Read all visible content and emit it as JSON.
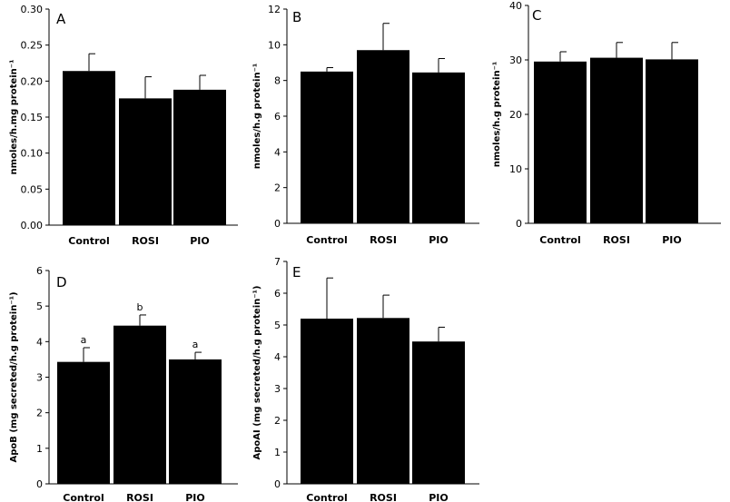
{
  "chart_data": [
    {
      "panel": "A",
      "type": "bar",
      "categories": [
        "Control",
        "ROSI",
        "PIO"
      ],
      "values": [
        0.214,
        0.176,
        0.188
      ],
      "errors": [
        0.024,
        0.03,
        0.02
      ],
      "ylabel": "nmoles/h.mg protein⁻¹",
      "ylim": [
        0,
        0.3
      ],
      "yticks": [
        "0.00",
        "0.05",
        "0.10",
        "0.15",
        "0.20",
        "0.25",
        "0.30"
      ],
      "bar_color": "#000000"
    },
    {
      "panel": "B",
      "type": "bar",
      "categories": [
        "Control",
        "ROSI",
        "PIO"
      ],
      "values": [
        8.5,
        9.7,
        8.45
      ],
      "errors": [
        0.22,
        1.5,
        0.78
      ],
      "ylabel": "nmoles/h.g protein⁻¹",
      "ylim": [
        0,
        12
      ],
      "yticks": [
        "0",
        "2",
        "4",
        "6",
        "8",
        "10",
        "12"
      ],
      "bar_color": "#000000"
    },
    {
      "panel": "C",
      "type": "bar",
      "categories": [
        "Control",
        "ROSI",
        "PIO"
      ],
      "values": [
        29.7,
        30.4,
        30.1
      ],
      "errors": [
        1.8,
        2.8,
        3.1
      ],
      "ylabel": "nmoles/h.g protein⁻¹",
      "ylim": [
        0,
        40
      ],
      "yticks": [
        "0",
        "10",
        "20",
        "30",
        "40"
      ],
      "bar_color": "#000000"
    },
    {
      "panel": "D",
      "type": "bar",
      "categories": [
        "Control",
        "ROSI",
        "PIO"
      ],
      "values": [
        3.43,
        4.45,
        3.5
      ],
      "errors": [
        0.4,
        0.3,
        0.2
      ],
      "significance": [
        "a",
        "b",
        "a"
      ],
      "ylabel": "ApoB (mg secreted/h.g protein⁻¹)",
      "ylim": [
        0,
        6
      ],
      "yticks": [
        "0",
        "1",
        "2",
        "3",
        "4",
        "5",
        "6"
      ],
      "bar_color": "#000000"
    },
    {
      "panel": "E",
      "type": "bar",
      "categories": [
        "Control",
        "ROSI",
        "PIO"
      ],
      "values": [
        5.2,
        5.22,
        4.48
      ],
      "errors": [
        1.28,
        0.72,
        0.45
      ],
      "ylabel": "ApoAI (mg secreted/h.g protein⁻¹)",
      "ylim": [
        0,
        7
      ],
      "yticks": [
        "0",
        "1",
        "2",
        "3",
        "4",
        "5",
        "6",
        "7"
      ],
      "bar_color": "#000000"
    }
  ]
}
